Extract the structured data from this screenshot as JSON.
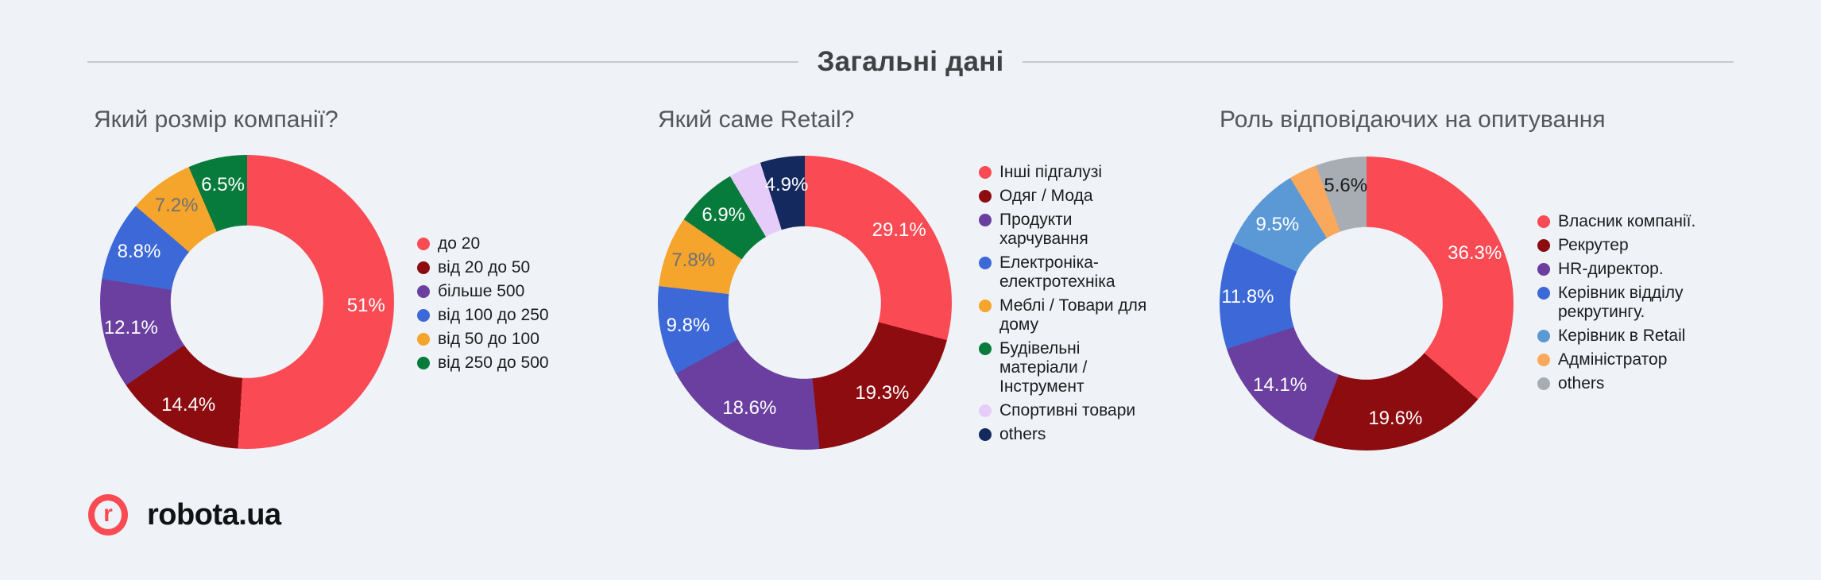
{
  "header": {
    "title": "Загальні дані"
  },
  "logo": {
    "mark": "r",
    "text": "robota.ua"
  },
  "colors": {
    "background": "#EFF3F7",
    "divider": "#C6CACE",
    "brand_red": "#FA4B55",
    "title_text": "#3F4245",
    "chart_title_text": "#54585C",
    "legend_text": "#1B1D1F"
  },
  "chart_data": [
    {
      "type": "pie",
      "donut": true,
      "hole_ratio": 0.52,
      "start_angle_deg": 0,
      "direction": "clockwise",
      "legend_position": "right",
      "title": "Який розмір компанії?",
      "slices": [
        {
          "label": "до 20",
          "value": 51,
          "pct_label": "51%",
          "color": "#FA4B55",
          "label_color": "#FFFFFF"
        },
        {
          "label": "від 20 до 50",
          "value": 14.4,
          "pct_label": "14.4%",
          "color": "#8C0C10",
          "label_color": "#FFFFFF"
        },
        {
          "label": "більше 500",
          "value": 12.1,
          "pct_label": "12.1%",
          "color": "#6A3FA0",
          "label_color": "#FFFFFF"
        },
        {
          "label": "від 100 до 250",
          "value": 8.8,
          "pct_label": "8.8%",
          "color": "#3D69D8",
          "label_color": "#FFFFFF"
        },
        {
          "label": "від 50 до 100",
          "value": 7.2,
          "pct_label": "7.2%",
          "color": "#F5A42C",
          "label_color": "#6D7175"
        },
        {
          "label": "від 250 до 500",
          "value": 6.5,
          "pct_label": "6.5%",
          "color": "#077B3B",
          "label_color": "#FFFFFF"
        }
      ]
    },
    {
      "type": "pie",
      "donut": true,
      "hole_ratio": 0.52,
      "start_angle_deg": 0,
      "direction": "clockwise",
      "legend_position": "right",
      "title": "Який саме Retail?",
      "slices": [
        {
          "label": "Інші підгалузі",
          "value": 29.1,
          "pct_label": "29.1%",
          "color": "#FA4B55",
          "label_color": "#FFFFFF"
        },
        {
          "label": "Одяг / Мода",
          "value": 19.3,
          "pct_label": "19.3%",
          "color": "#8C0C10",
          "label_color": "#FFFFFF"
        },
        {
          "label": "Продукти харчування",
          "value": 18.6,
          "pct_label": "18.6%",
          "color": "#6A3FA0",
          "label_color": "#FFFFFF"
        },
        {
          "label": "Електроніка-електротехніка",
          "value": 9.8,
          "pct_label": "9.8%",
          "color": "#3D69D8",
          "label_color": "#FFFFFF"
        },
        {
          "label": "Меблі / Товари для дому",
          "value": 7.8,
          "pct_label": "7.8%",
          "color": "#F5A42C",
          "label_color": "#6D7175"
        },
        {
          "label": "Будівельні матеріали / Інструмент",
          "value": 6.9,
          "pct_label": "6.9%",
          "color": "#077B3B",
          "label_color": "#FFFFFF"
        },
        {
          "label": "Спортивні товари",
          "value": 3.6,
          "pct_label": "",
          "color": "#E6CDF9",
          "label_color": "#6D7175"
        },
        {
          "label": "others",
          "value": 4.9,
          "pct_label": "4.9%",
          "color": "#14295E",
          "label_color": "#FFFFFF"
        }
      ]
    },
    {
      "type": "pie",
      "donut": true,
      "hole_ratio": 0.52,
      "start_angle_deg": 0,
      "direction": "clockwise",
      "legend_position": "right",
      "title": "Роль відповідаючих на опитування",
      "slices": [
        {
          "label": "Власник компанії.",
          "value": 36.3,
          "pct_label": "36.3%",
          "color": "#FA4B55",
          "label_color": "#FFFFFF"
        },
        {
          "label": "Рекрутер",
          "value": 19.6,
          "pct_label": "19.6%",
          "color": "#8C0C10",
          "label_color": "#FFFFFF"
        },
        {
          "label": "HR-директор.",
          "value": 14.1,
          "pct_label": "14.1%",
          "color": "#6A3FA0",
          "label_color": "#FFFFFF"
        },
        {
          "label": "Керівник відділу рекрутингу.",
          "value": 11.8,
          "pct_label": "11.8%",
          "color": "#3D69D8",
          "label_color": "#FFFFFF"
        },
        {
          "label": "Керівник в Retail",
          "value": 9.5,
          "pct_label": "9.5%",
          "color": "#5B99D6",
          "label_color": "#FFFFFF"
        },
        {
          "label": "Адміністратор",
          "value": 3.1,
          "pct_label": "",
          "color": "#F9A85C",
          "label_color": "#6D7175"
        },
        {
          "label": "others",
          "value": 5.6,
          "pct_label": "5.6%",
          "color": "#A8ADB3",
          "label_color": "#1A1C1E"
        }
      ]
    }
  ]
}
